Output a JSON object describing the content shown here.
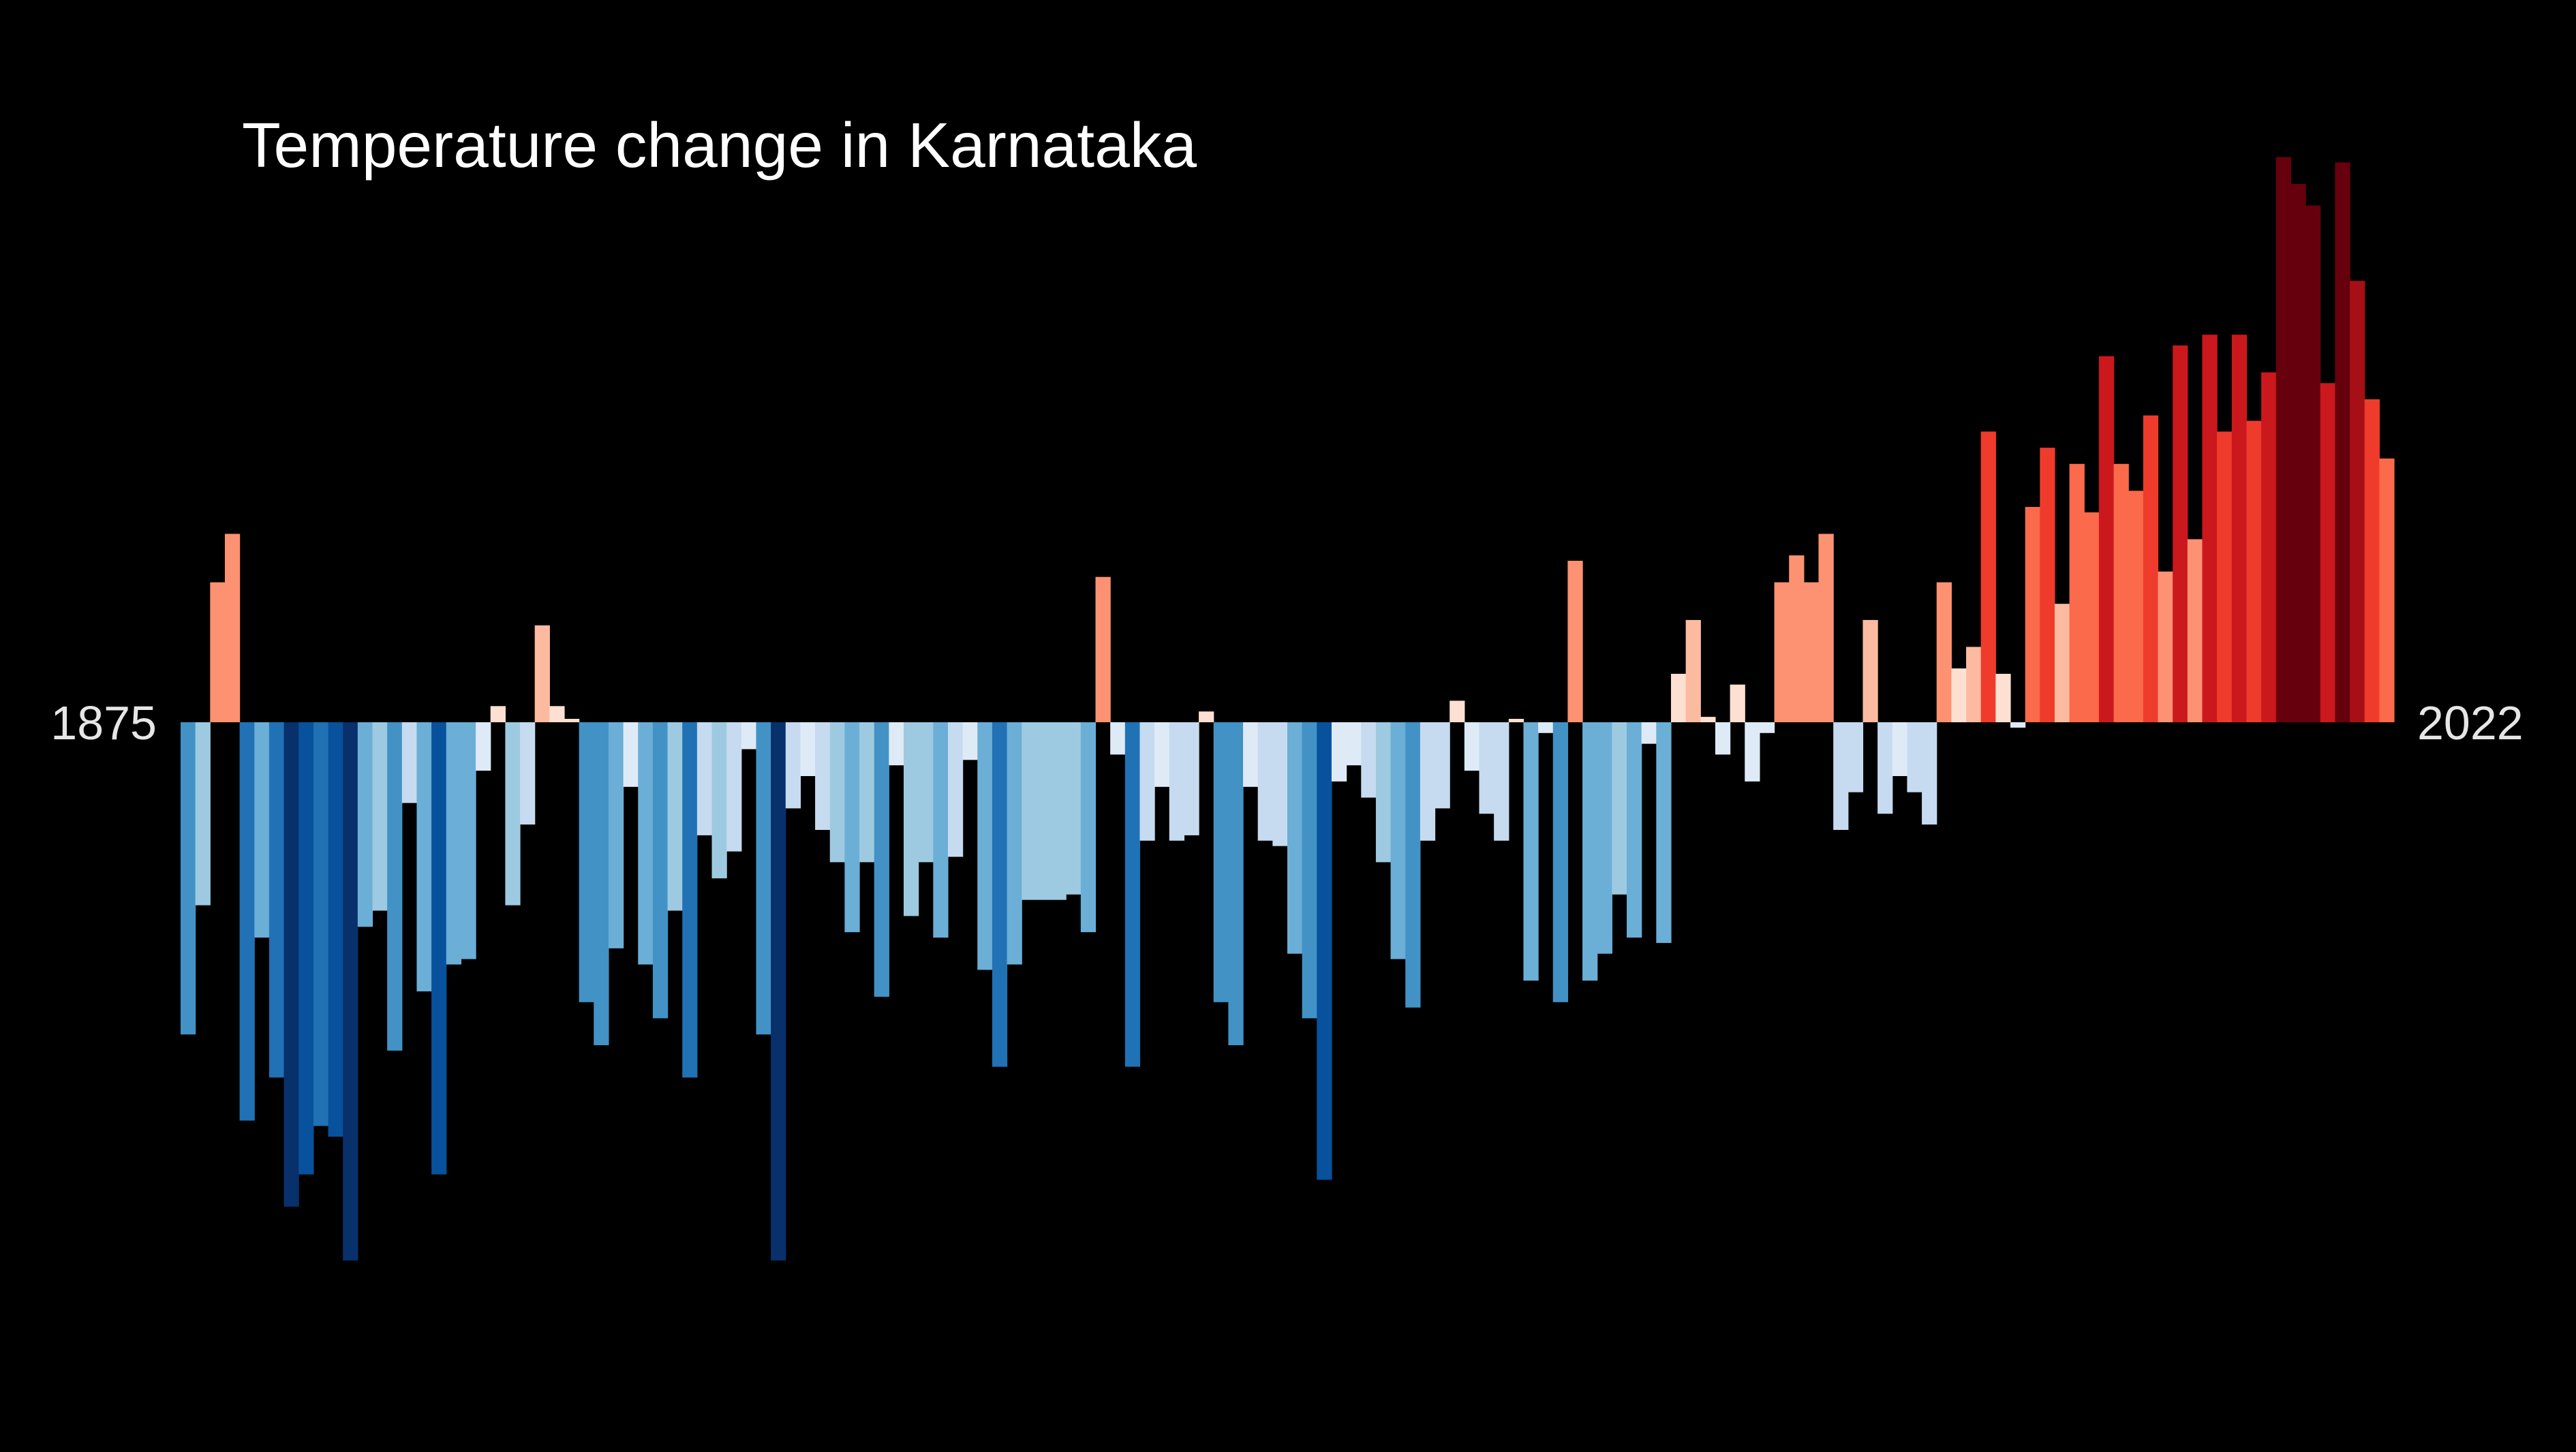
{
  "chart_data": {
    "type": "bar",
    "title": "Temperature change in Karnataka",
    "xlabel": "",
    "ylabel": "",
    "start_label": "1875",
    "end_label": "2022",
    "x_start": 1875,
    "x_end": 2022,
    "ylim": [
      -1.0,
      1.05
    ],
    "grid": false,
    "legend": "none",
    "colors": {
      "background": "#000000",
      "text": "#ffffff",
      "end_labels": "#e6e6e6",
      "scale": [
        "#08306b",
        "#08519c",
        "#2171b5",
        "#4292c6",
        "#6baed6",
        "#9ecae1",
        "#c6dbef",
        "#deebf7",
        "#fee0d2",
        "#fcbba1",
        "#fc9272",
        "#fb6a4a",
        "#ef3b2c",
        "#cb181d",
        "#a50f15",
        "#67000d"
      ]
    },
    "values": [
      -0.58,
      -0.34,
      0.26,
      0.35,
      -0.74,
      -0.4,
      -0.66,
      -0.9,
      -0.84,
      -0.75,
      -0.77,
      -1.0,
      -0.38,
      -0.35,
      -0.61,
      -0.15,
      -0.5,
      -0.84,
      -0.45,
      -0.44,
      -0.09,
      0.03,
      -0.34,
      -0.19,
      0.18,
      0.03,
      0.0,
      -0.52,
      -0.6,
      -0.42,
      -0.12,
      -0.45,
      -0.55,
      -0.35,
      -0.66,
      -0.21,
      -0.29,
      -0.24,
      -0.05,
      -0.58,
      -1.0,
      -0.16,
      -0.1,
      -0.2,
      -0.26,
      -0.39,
      -0.26,
      -0.51,
      -0.08,
      -0.36,
      -0.26,
      -0.4,
      -0.25,
      -0.07,
      -0.46,
      -0.64,
      -0.45,
      -0.33,
      -0.33,
      -0.33,
      -0.32,
      -0.39,
      0.27,
      -0.06,
      -0.64,
      -0.22,
      -0.12,
      -0.22,
      -0.21,
      0.02,
      -0.52,
      -0.6,
      -0.12,
      -0.22,
      -0.23,
      -0.43,
      -0.55,
      -0.85,
      -0.11,
      -0.08,
      -0.14,
      -0.26,
      -0.44,
      -0.53,
      -0.22,
      -0.16,
      0.04,
      -0.09,
      -0.17,
      -0.22,
      0.0,
      -0.48,
      -0.02,
      -0.52,
      0.3,
      -0.48,
      -0.43,
      -0.32,
      -0.4,
      -0.04,
      -0.41,
      0.09,
      0.19,
      0.01,
      -0.06,
      0.07,
      -0.11,
      -0.02,
      0.26,
      0.31,
      0.26,
      0.35,
      -0.2,
      -0.13,
      0.19,
      -0.17,
      -0.1,
      -0.13,
      -0.19,
      0.26,
      0.1,
      0.14,
      0.54,
      0.09,
      -0.01,
      0.4,
      0.51,
      0.22,
      0.48,
      0.39,
      0.68,
      0.48,
      0.43,
      0.57,
      0.28,
      0.7,
      0.34,
      0.72,
      0.54,
      0.72,
      0.56,
      0.65,
      1.05,
      1.0,
      0.96,
      0.63,
      1.04,
      0.82,
      0.6,
      0.49
    ]
  }
}
